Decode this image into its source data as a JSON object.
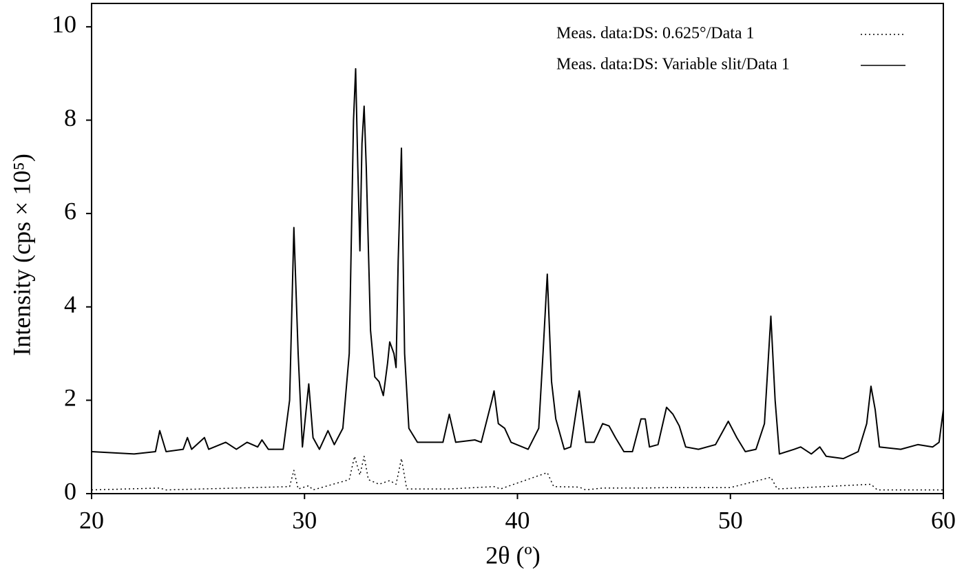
{
  "chart_data": {
    "type": "line",
    "x_label": "2θ (º)",
    "y_label": "Intensity (cps × 10⁵)",
    "xlim": [
      20,
      60
    ],
    "xticks": [
      20,
      30,
      40,
      50,
      60
    ],
    "ylim": [
      0,
      10.5
    ],
    "yticks": [
      0,
      2,
      4,
      6,
      8,
      10
    ],
    "series": [
      {
        "name": "Meas. data:DS: 0.625°/Data 1",
        "color": "#000000",
        "style": "dotted",
        "x": [
          20,
          23.2,
          23.5,
          29.3,
          29.5,
          29.7,
          30.2,
          30.4,
          32.1,
          32.35,
          32.6,
          32.8,
          33.0,
          33.5,
          34.0,
          34.3,
          34.55,
          34.8,
          36.8,
          38.9,
          39.2,
          41.4,
          41.7,
          42.9,
          43.2,
          44.0,
          45.9,
          47.0,
          50.0,
          51.9,
          52.2,
          56.6,
          56.9,
          60
        ],
        "values": [
          0.08,
          0.12,
          0.08,
          0.15,
          0.5,
          0.1,
          0.17,
          0.08,
          0.3,
          0.8,
          0.4,
          0.8,
          0.3,
          0.2,
          0.28,
          0.2,
          0.75,
          0.1,
          0.1,
          0.15,
          0.1,
          0.45,
          0.15,
          0.14,
          0.08,
          0.12,
          0.12,
          0.13,
          0.13,
          0.35,
          0.1,
          0.2,
          0.08,
          0.08
        ]
      },
      {
        "name": "Meas. data:DS: Variable slit/Data 1",
        "color": "#000000",
        "style": "solid",
        "x": [
          20,
          22,
          23,
          23.2,
          23.5,
          24.3,
          24.5,
          24.7,
          25.3,
          25.5,
          26.3,
          26.8,
          27.3,
          27.8,
          28.0,
          28.3,
          29.0,
          29.3,
          29.5,
          29.7,
          29.9,
          30.1,
          30.2,
          30.4,
          30.7,
          31.1,
          31.4,
          31.8,
          32.1,
          32.3,
          32.4,
          32.5,
          32.6,
          32.7,
          32.8,
          32.9,
          33.1,
          33.3,
          33.5,
          33.7,
          33.9,
          34.0,
          34.2,
          34.3,
          34.4,
          34.55,
          34.7,
          34.9,
          35.3,
          36.5,
          36.8,
          37.1,
          38.0,
          38.3,
          38.8,
          38.9,
          39.1,
          39.4,
          39.7,
          40.5,
          41.0,
          41.2,
          41.4,
          41.6,
          41.8,
          42.2,
          42.5,
          42.9,
          43.2,
          43.6,
          44.0,
          44.3,
          44.6,
          45.0,
          45.4,
          45.8,
          46.0,
          46.2,
          46.6,
          47.0,
          47.3,
          47.6,
          47.9,
          48.5,
          49.3,
          49.9,
          50.3,
          50.7,
          51.2,
          51.6,
          51.9,
          52.1,
          52.3,
          53.0,
          53.3,
          53.8,
          54.2,
          54.5,
          55.3,
          56.0,
          56.4,
          56.6,
          56.8,
          57.0,
          58.0,
          58.8,
          59.5,
          59.8,
          60.0
        ],
        "values": [
          0.9,
          0.85,
          0.9,
          1.35,
          0.9,
          0.95,
          1.2,
          0.95,
          1.2,
          0.95,
          1.1,
          0.95,
          1.1,
          1.0,
          1.15,
          0.95,
          0.95,
          2.0,
          5.7,
          3.0,
          1.0,
          1.9,
          2.35,
          1.2,
          0.95,
          1.35,
          1.05,
          1.4,
          3.0,
          8.0,
          9.1,
          7.0,
          5.2,
          7.5,
          8.3,
          7.0,
          3.5,
          2.5,
          2.4,
          2.1,
          2.8,
          3.25,
          3.0,
          2.7,
          5.0,
          7.4,
          3.0,
          1.4,
          1.1,
          1.1,
          1.7,
          1.1,
          1.15,
          1.1,
          2.0,
          2.2,
          1.5,
          1.4,
          1.1,
          0.95,
          1.4,
          3.0,
          4.7,
          2.4,
          1.6,
          0.95,
          1.0,
          2.2,
          1.1,
          1.1,
          1.5,
          1.45,
          1.2,
          0.9,
          0.9,
          1.6,
          1.6,
          1.0,
          1.05,
          1.85,
          1.7,
          1.45,
          1.0,
          0.95,
          1.05,
          1.55,
          1.2,
          0.9,
          0.95,
          1.5,
          3.8,
          2.0,
          0.85,
          0.95,
          1.0,
          0.85,
          1.0,
          0.8,
          0.75,
          0.9,
          1.5,
          2.3,
          1.8,
          1.0,
          0.95,
          1.05,
          1.0,
          1.1,
          1.8
        ]
      }
    ]
  }
}
